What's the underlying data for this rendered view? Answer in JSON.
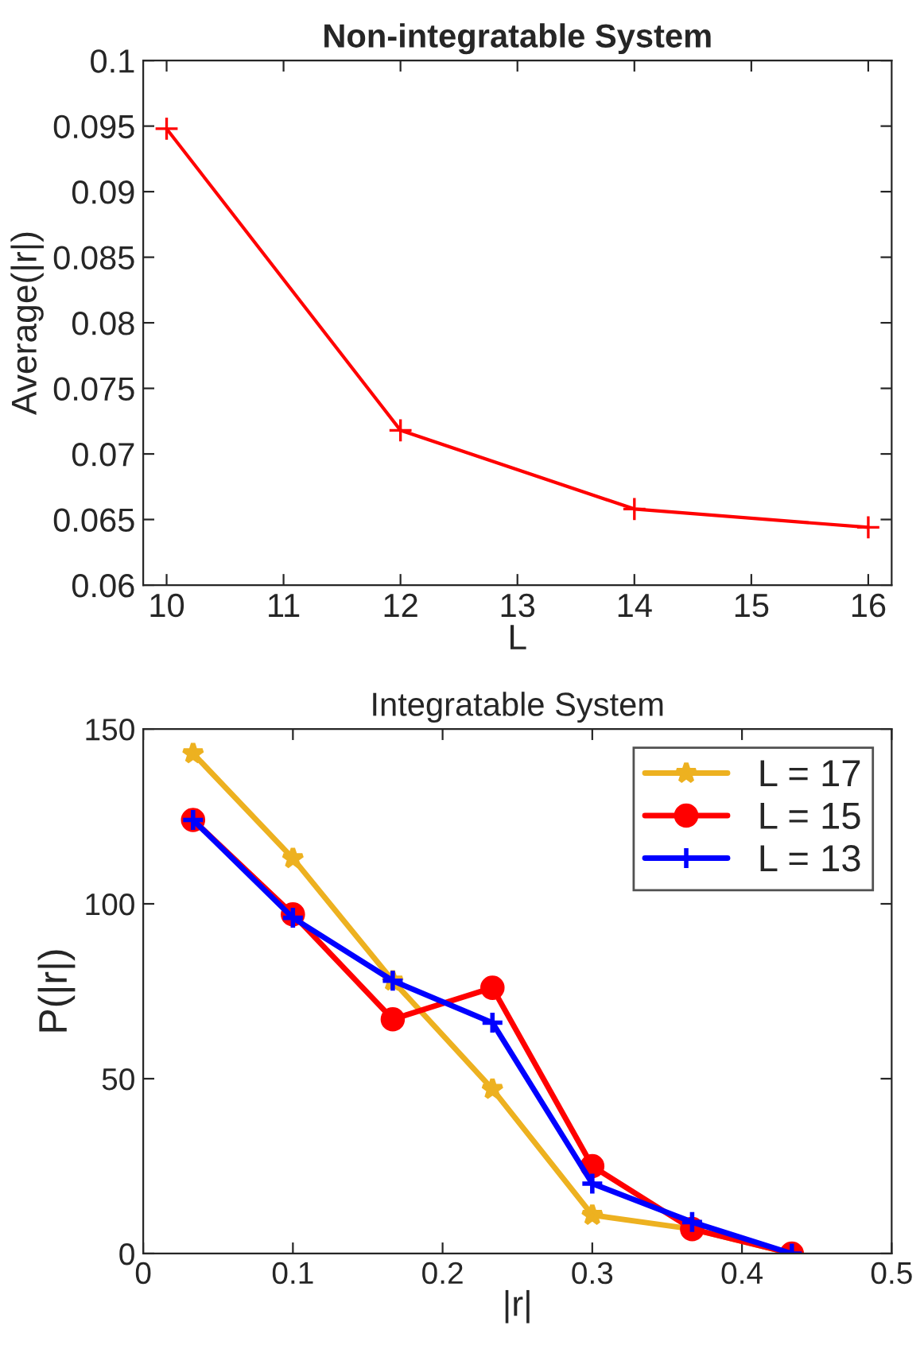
{
  "chart_data": [
    {
      "type": "line",
      "title": "Non-integratable System",
      "xlabel": "L",
      "ylabel": "Average(|r|)",
      "x": [
        10,
        12,
        14,
        16
      ],
      "series": [
        {
          "color": "#ff0000",
          "values": [
            0.0948,
            0.0718,
            0.0658,
            0.0644
          ],
          "marker": "cross"
        }
      ],
      "xlim": [
        9.8,
        16.2
      ],
      "xticks": [
        10,
        11,
        12,
        13,
        14,
        15,
        16
      ],
      "ylim": [
        0.06,
        0.1
      ],
      "yticks": [
        0.06,
        0.065,
        0.07,
        0.075,
        0.08,
        0.085,
        0.09,
        0.095,
        0.1
      ],
      "grid": false,
      "legend": false
    },
    {
      "type": "line",
      "title": "Integratable System",
      "xlabel": "|r|",
      "ylabel": "P(|r|)",
      "x": [
        0.0333,
        0.1,
        0.1667,
        0.2333,
        0.3,
        0.3667,
        0.4333
      ],
      "series": [
        {
          "name": "L = 17",
          "color": "#edb120",
          "values": [
            143,
            113,
            78,
            47,
            11,
            7,
            0
          ],
          "marker": "star"
        },
        {
          "name": "L = 15",
          "color": "#ff0000",
          "values": [
            124,
            97,
            67,
            76,
            25,
            7,
            0
          ],
          "marker": "circle"
        },
        {
          "name": "L = 13",
          "color": "#0000ff",
          "values": [
            124,
            96,
            78,
            66,
            20,
            9,
            0
          ],
          "marker": "cross"
        }
      ],
      "xlim": [
        0,
        0.5
      ],
      "xticks": [
        0,
        0.1,
        0.2,
        0.3,
        0.4,
        0.5
      ],
      "ylim": [
        0,
        150
      ],
      "yticks": [
        0,
        50,
        100,
        150
      ],
      "grid": false,
      "legend": "top right"
    }
  ]
}
